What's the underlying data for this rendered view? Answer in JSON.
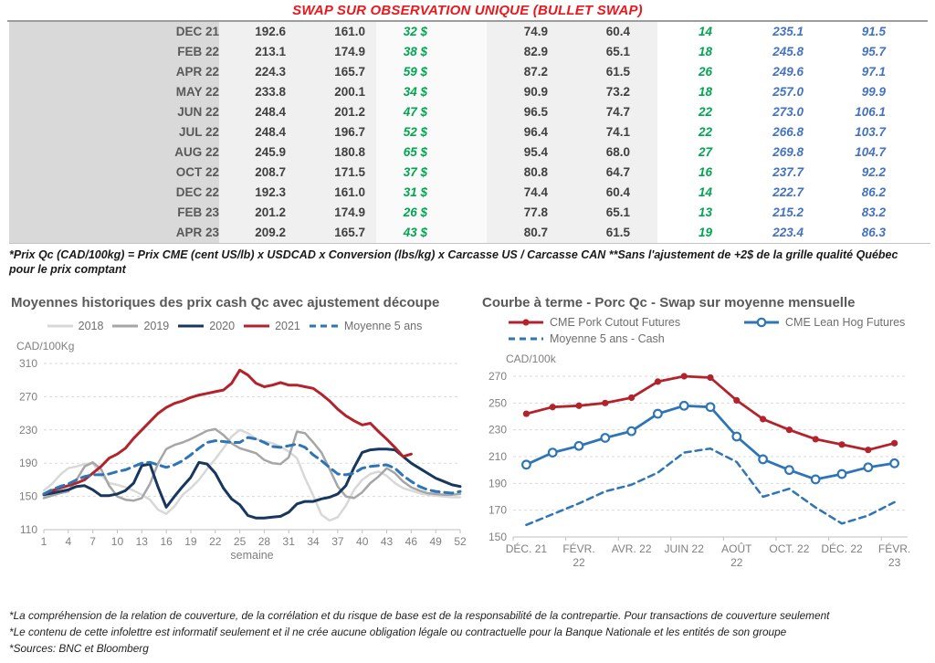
{
  "page_title": "SWAP SUR OBSERVATION UNIQUE (BULLET SWAP)",
  "colors": {
    "title_red": "#e8191f",
    "table_green": "#00a651",
    "table_blue": "#4472c4",
    "chart_red": "#b3232b",
    "chart_navy": "#17375e",
    "chart_blue": "#2e75b6",
    "gray_2018": "#d8d8d8",
    "gray_2019": "#a6a6a6",
    "month_col_bg": "#d9d9d9",
    "value_col_bg": "#f0f0f0"
  },
  "table": {
    "rows": [
      {
        "month": "DEC 21",
        "v1": "192.6",
        "v2": "161.0",
        "basis": "32 $",
        "v3": "74.9",
        "v4": "60.4",
        "v5": "14",
        "v6": "235.1",
        "v7": "91.5"
      },
      {
        "month": "FEB 22",
        "v1": "213.1",
        "v2": "174.9",
        "basis": "38 $",
        "v3": "82.9",
        "v4": "65.1",
        "v5": "18",
        "v6": "245.8",
        "v7": "95.7"
      },
      {
        "month": "APR 22",
        "v1": "224.3",
        "v2": "165.7",
        "basis": "59 $",
        "v3": "87.2",
        "v4": "61.5",
        "v5": "26",
        "v6": "249.6",
        "v7": "97.1"
      },
      {
        "month": "MAY 22",
        "v1": "233.8",
        "v2": "200.1",
        "basis": "34 $",
        "v3": "90.9",
        "v4": "73.2",
        "v5": "18",
        "v6": "257.0",
        "v7": "99.9"
      },
      {
        "month": "JUN 22",
        "v1": "248.4",
        "v2": "201.2",
        "basis": "47 $",
        "v3": "96.5",
        "v4": "74.7",
        "v5": "22",
        "v6": "273.0",
        "v7": "106.1"
      },
      {
        "month": "JUL 22",
        "v1": "248.4",
        "v2": "196.7",
        "basis": "52 $",
        "v3": "96.4",
        "v4": "74.1",
        "v5": "22",
        "v6": "266.8",
        "v7": "103.7"
      },
      {
        "month": "AUG 22",
        "v1": "245.9",
        "v2": "180.8",
        "basis": "65 $",
        "v3": "95.4",
        "v4": "68.0",
        "v5": "27",
        "v6": "269.8",
        "v7": "104.7"
      },
      {
        "month": "OCT 22",
        "v1": "208.7",
        "v2": "171.5",
        "basis": "37 $",
        "v3": "80.8",
        "v4": "64.7",
        "v5": "16",
        "v6": "237.7",
        "v7": "92.2"
      },
      {
        "month": "DEC 22",
        "v1": "192.3",
        "v2": "161.0",
        "basis": "31 $",
        "v3": "74.4",
        "v4": "60.4",
        "v5": "14",
        "v6": "222.7",
        "v7": "86.2"
      },
      {
        "month": "FEB 23",
        "v1": "201.2",
        "v2": "174.9",
        "basis": "26 $",
        "v3": "77.8",
        "v4": "65.1",
        "v5": "13",
        "v6": "215.2",
        "v7": "83.2"
      },
      {
        "month": "APR 23",
        "v1": "209.2",
        "v2": "165.7",
        "basis": "43 $",
        "v3": "80.7",
        "v4": "61.5",
        "v5": "19",
        "v6": "223.4",
        "v7": "86.3"
      }
    ]
  },
  "table_footnote": "*Prix Qc (CAD/100kg) = Prix CME (cent US/lb) x USDCAD x Conversion (lbs/kg) x Carcasse US / Carcasse CAN **Sans l'ajustement de +2$ de la grille qualité Québec pour le prix comptant",
  "chart_data": [
    {
      "type": "line",
      "title": "Moyennes historiques des prix cash Qc avec ajustement découpe",
      "ylabel": "CAD/100Kg",
      "xlabel": "semaine",
      "ylim": [
        110,
        310
      ],
      "y_ticks": [
        110,
        150,
        190,
        230,
        270,
        310
      ],
      "xlim": [
        1,
        52
      ],
      "x_ticks": [
        1,
        4,
        7,
        10,
        13,
        16,
        19,
        22,
        25,
        28,
        31,
        34,
        37,
        40,
        43,
        46,
        49,
        52
      ],
      "grid": true,
      "legend_position": "top",
      "series": [
        {
          "name": "2018",
          "color": "#d8d8d8",
          "width": 2.5,
          "values": [
            157,
            165,
            176,
            184,
            186,
            189,
            190,
            176,
            166,
            164,
            161,
            157,
            152,
            146,
            134,
            129,
            138,
            152,
            160,
            170,
            183,
            195,
            208,
            222,
            230,
            226,
            219,
            216,
            214,
            210,
            204,
            196,
            172,
            151,
            128,
            121,
            125,
            139,
            158,
            170,
            177,
            180,
            175,
            166,
            160,
            157,
            154,
            152,
            151,
            150,
            149,
            149
          ]
        },
        {
          "name": "2019",
          "color": "#a6a6a6",
          "width": 2.5,
          "values": [
            148,
            151,
            154,
            156,
            170,
            186,
            191,
            183,
            163,
            150,
            146,
            145,
            148,
            165,
            190,
            207,
            212,
            215,
            219,
            224,
            229,
            231,
            224,
            214,
            208,
            205,
            202,
            194,
            190,
            189,
            197,
            228,
            226,
            215,
            203,
            183,
            162,
            150,
            148,
            155,
            166,
            174,
            184,
            178,
            168,
            161,
            157,
            154,
            153,
            152,
            152,
            153
          ]
        },
        {
          "name": "2020",
          "color": "#17375e",
          "width": 3,
          "values": [
            152,
            154,
            156,
            158,
            162,
            163,
            158,
            151,
            151,
            153,
            157,
            166,
            187,
            189,
            161,
            137,
            150,
            162,
            173,
            191,
            189,
            178,
            160,
            147,
            140,
            127,
            124,
            124,
            125,
            126,
            131,
            141,
            144,
            144,
            147,
            149,
            153,
            163,
            185,
            203,
            206,
            207,
            207,
            206,
            198,
            190,
            184,
            178,
            172,
            168,
            164,
            162
          ]
        },
        {
          "name": "2021",
          "color": "#b3232b",
          "width": 3,
          "values": [
            153,
            157,
            160,
            163,
            166,
            170,
            178,
            186,
            196,
            201,
            208,
            220,
            230,
            240,
            250,
            257,
            262,
            265,
            269,
            272,
            274,
            276,
            278,
            286,
            302,
            296,
            286,
            282,
            284,
            287,
            284,
            284,
            282,
            280,
            273,
            265,
            255,
            247,
            241,
            236,
            238,
            228,
            219,
            209,
            198,
            201
          ]
        },
        {
          "name": "Moyenne 5 ans",
          "color": "#2e75b6",
          "width": 3,
          "dash": "9 6",
          "values": [
            153,
            158,
            162,
            165,
            170,
            174,
            176,
            176,
            177,
            180,
            182,
            186,
            190,
            191,
            188,
            185,
            188,
            193,
            200,
            208,
            215,
            217,
            216,
            215,
            215,
            221,
            219,
            215,
            210,
            209,
            211,
            213,
            209,
            200,
            193,
            185,
            177,
            176,
            178,
            184,
            186,
            187,
            188,
            184,
            175,
            168,
            162,
            158,
            156,
            155,
            154,
            156
          ]
        }
      ]
    },
    {
      "type": "line",
      "title": "Courbe à terme - Porc Qc - Swap sur moyenne mensuelle",
      "ylabel": "CAD/100k",
      "ylim": [
        150,
        270
      ],
      "y_ticks": [
        150,
        170,
        190,
        210,
        230,
        250,
        270
      ],
      "grid": true,
      "legend_position": "top",
      "x_labels": [
        [
          "DÉC. 21"
        ],
        [],
        [
          "FÉVR.",
          "22"
        ],
        [],
        [
          "AVR. 22"
        ],
        [],
        [
          "JUIN 22"
        ],
        [],
        [
          "AOÛT",
          "22"
        ],
        [],
        [
          "OCT. 22"
        ],
        [],
        [
          "DÉC. 22"
        ],
        [],
        [
          "FÉVR.",
          "23"
        ]
      ],
      "series": [
        {
          "name": "CME Pork Cutout Futures",
          "color": "#b3232b",
          "width": 2.8,
          "marker": "dot",
          "values": [
            242,
            247,
            248,
            250,
            254,
            266,
            270,
            269,
            252,
            238,
            230,
            223,
            219,
            215,
            220
          ]
        },
        {
          "name": "CME Lean Hog Futures",
          "color": "#2e75b6",
          "width": 2.8,
          "marker": "circle",
          "values": [
            204,
            213,
            218,
            224,
            229,
            242,
            248,
            247,
            225,
            208,
            200,
            193,
            197,
            202,
            205
          ]
        },
        {
          "name": "Moyenne 5 ans - Cash",
          "color": "#2e75b6",
          "width": 2.5,
          "dash": "7 5",
          "values": [
            159,
            167,
            175,
            184,
            189,
            198,
            213,
            216,
            206,
            180,
            186,
            172,
            160,
            166,
            176
          ]
        }
      ]
    }
  ],
  "footer_notes": [
    "*La compréhension de la relation de couverture, de la corrélation et du risque de base est de la responsabilité de la contrepartie. Pour transactions de couverture seulement",
    "*Le contenu de cette infolettre est informatif seulement et il ne crée aucune obligation légale ou contractuelle pour la Banque Nationale et les entités de son groupe",
    "*Sources: BNC et Bloomberg"
  ]
}
